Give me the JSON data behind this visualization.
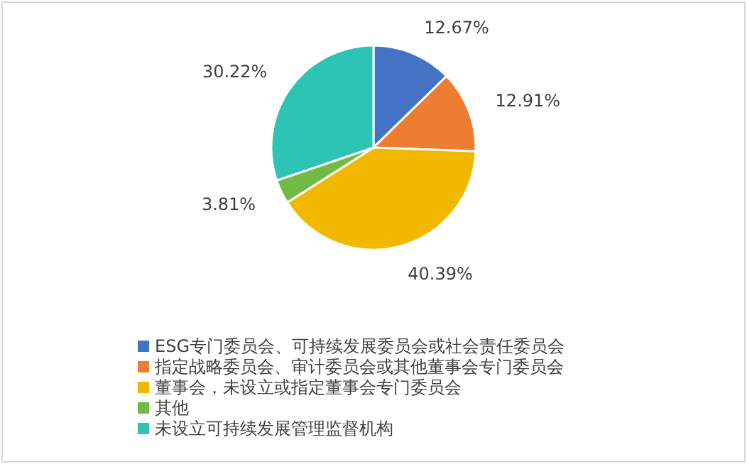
{
  "chart_data": {
    "type": "pie",
    "categories": [
      "ESG专门委员会、可持续发展委员会或社会责任委员会",
      "指定战略委员会、审计委员会或其他董事会专门委员会",
      "董事会，未设立或指定董事会专门委员会",
      "其他",
      "未设立可持续发展管理监督机构"
    ],
    "values": [
      12.67,
      12.91,
      40.39,
      3.81,
      30.22
    ],
    "value_labels": [
      "12.67%",
      "12.91%",
      "40.39%",
      "3.81%",
      "30.22%"
    ],
    "colors": [
      "#4472c4",
      "#ed7d31",
      "#f2b800",
      "#70ba45",
      "#2ec4b5"
    ],
    "legend": "bottom left"
  }
}
